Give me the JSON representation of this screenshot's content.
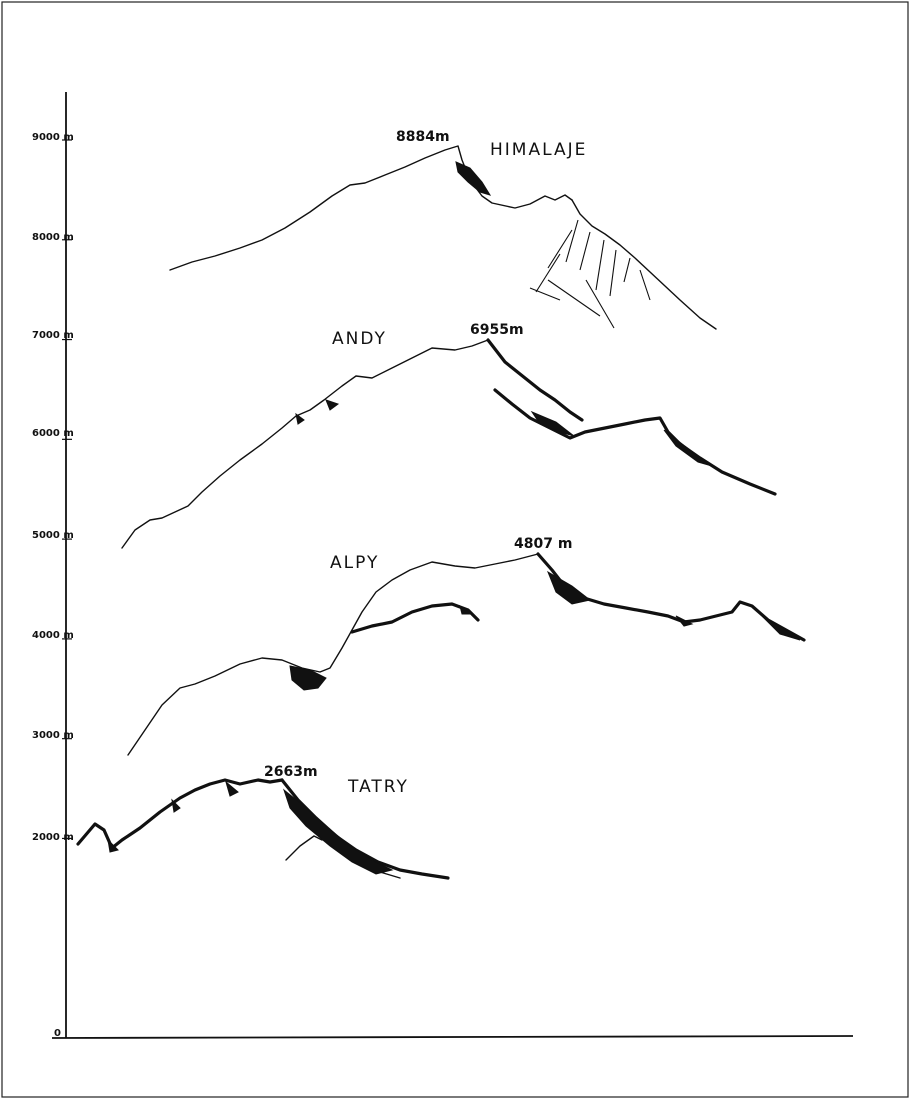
{
  "axis": {
    "ticks": [
      {
        "value": 0,
        "label": "0"
      },
      {
        "value": 2000,
        "label": "2000 m"
      },
      {
        "value": 3000,
        "label": "3000 m"
      },
      {
        "value": 4000,
        "label": "4000 m"
      },
      {
        "value": 5000,
        "label": "5000 m"
      },
      {
        "value": 6000,
        "label": "6000 m"
      },
      {
        "value": 7000,
        "label": "7000 m"
      },
      {
        "value": 8000,
        "label": "8000 m"
      },
      {
        "value": 9000,
        "label": "9000 m"
      }
    ]
  },
  "ranges": [
    {
      "id": "himalaje",
      "name": "HIMALAJE",
      "peak_label": "8884m",
      "peak_height_m": 8884
    },
    {
      "id": "andy",
      "name": "ANDY",
      "peak_label": "6955m",
      "peak_height_m": 6955
    },
    {
      "id": "alpy",
      "name": "ALPY",
      "peak_label": "4807 m",
      "peak_height_m": 4807
    },
    {
      "id": "tatry",
      "name": "TATRY",
      "peak_label": "2663m",
      "peak_height_m": 2663
    }
  ]
}
